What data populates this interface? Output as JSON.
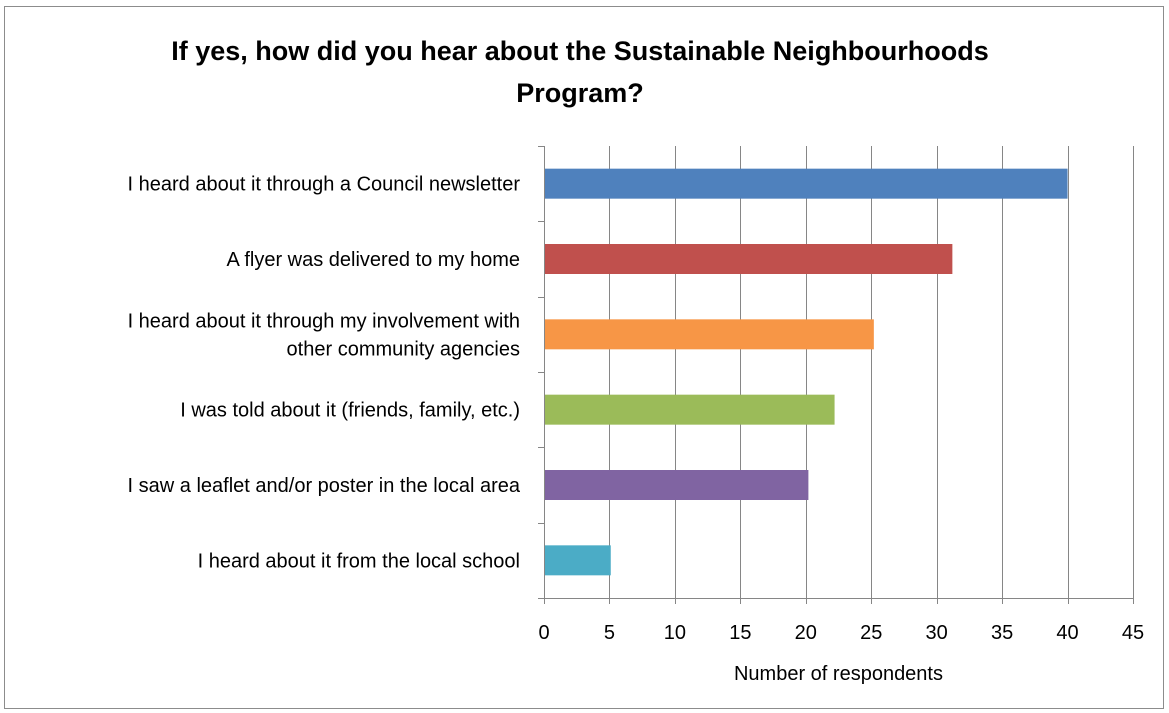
{
  "chart_data": {
    "type": "bar",
    "orientation": "horizontal",
    "title_lines": [
      "If yes, how did you hear about the Sustainable Neighbourhoods",
      "Program?"
    ],
    "categories": [
      [
        "I heard about it through a Council newsletter"
      ],
      [
        "A flyer was delivered to my home"
      ],
      [
        "I heard about it through my involvement with",
        "other community agencies"
      ],
      [
        "I was told about it (friends, family, etc.)"
      ],
      [
        "I saw a leaflet and/or poster in the local area"
      ],
      [
        "I heard about it from the local school"
      ]
    ],
    "values": [
      40,
      31.2,
      25.2,
      22.2,
      20.2,
      5.1
    ],
    "colors": [
      "#4f81bd",
      "#c0504d",
      "#f79646",
      "#9bbb59",
      "#8064a2",
      "#4bacc6"
    ],
    "xlabel": "Number of respondents",
    "ylabel": "",
    "xlim": [
      0,
      45
    ],
    "xticks": [
      "0",
      "5",
      "10",
      "15",
      "20",
      "25",
      "30",
      "35",
      "40",
      "45"
    ],
    "xtick_values": [
      0,
      5,
      10,
      15,
      20,
      25,
      30,
      35,
      40,
      45
    ],
    "grid": true
  }
}
